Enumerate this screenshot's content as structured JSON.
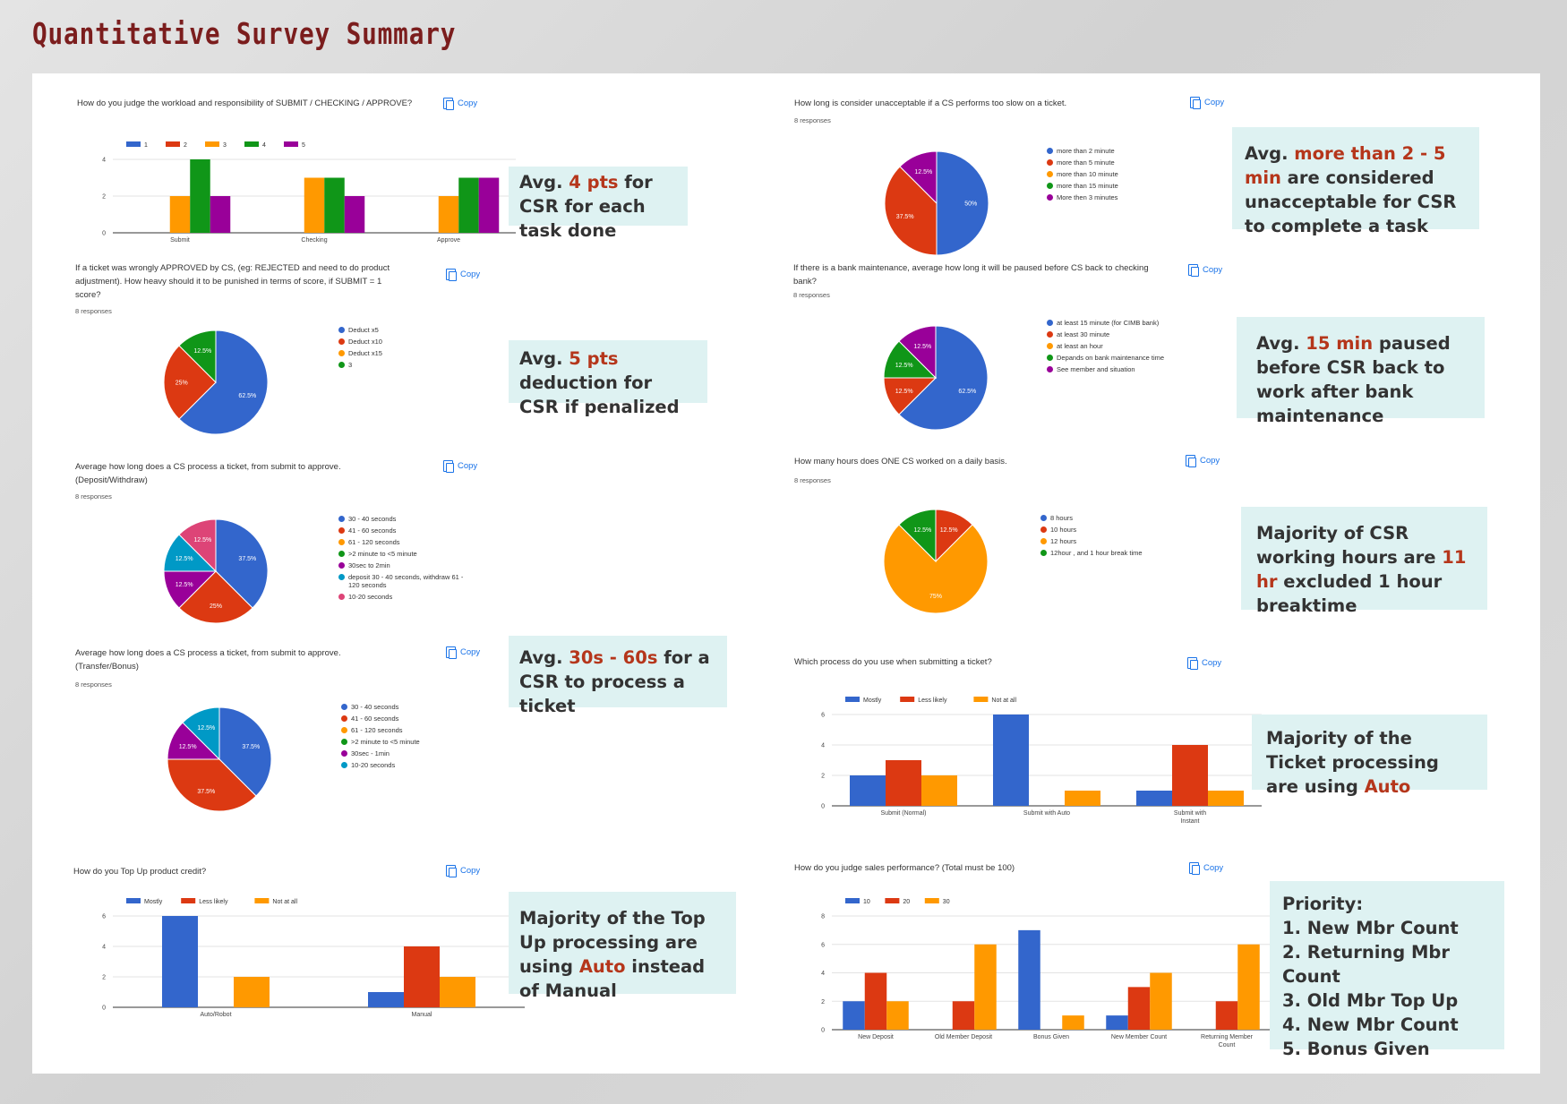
{
  "page": {
    "title": "Quantitative Survey Summary"
  },
  "copy_label": "Copy",
  "responses_label": "8 responses",
  "colors": {
    "blue": "#3366cc",
    "red": "#dc3912",
    "orange": "#ff9900",
    "green": "#109618",
    "purple": "#990099",
    "teal": "#0099c6",
    "pink": "#dd4477"
  },
  "callouts": {
    "workload": {
      "a": "Avg. ",
      "b": "4 pts",
      "c": " for CSR for each task done"
    },
    "penalty": {
      "a": "Avg. ",
      "b": "5 pts",
      "c": " deduction for CSR if penalized"
    },
    "process_time": {
      "a": "Avg. ",
      "b": "30s - 60s",
      "c": " for a CSR to process a ticket"
    },
    "topup": {
      "a": "Majority of the Top Up processing are using ",
      "b": "Auto",
      "c": " instead of Manual"
    },
    "unacceptable": {
      "a": "Avg. ",
      "b": "more than 2 - 5 min",
      "c": " are considered  unacceptable for CSR to complete a task"
    },
    "maintenance": {
      "a": "Avg. ",
      "b": "15 min",
      "c": " paused before CSR back to work after bank maintenance"
    },
    "hours": {
      "a": "Majority of CSR working hours are ",
      "b": "11 hr",
      "c": " excluded 1 hour breaktime"
    },
    "ticket_process": {
      "a": "Majority of the Ticket processing are using ",
      "b": "Auto",
      "c": ""
    },
    "priority": {
      "heading": "Priority:",
      "items": [
        "1. New Mbr Count",
        "2. Returning Mbr Count",
        "3. Old Mbr Top Up",
        "4. New Mbr Count",
        "5. Bonus Given"
      ]
    }
  },
  "chart_data": [
    {
      "id": "q1",
      "type": "bar",
      "title": "How do you judge the workload and responsibility of SUBMIT / CHECKING / APPROVE?",
      "categories": [
        "Submit",
        "Checking",
        "Approve"
      ],
      "series": [
        {
          "name": "1",
          "color": "#3366cc",
          "values": [
            0,
            0,
            0
          ]
        },
        {
          "name": "2",
          "color": "#dc3912",
          "values": [
            0,
            0,
            0
          ]
        },
        {
          "name": "3",
          "color": "#ff9900",
          "values": [
            2,
            3,
            2
          ]
        },
        {
          "name": "4",
          "color": "#109618",
          "values": [
            4,
            3,
            3
          ]
        },
        {
          "name": "5",
          "color": "#990099",
          "values": [
            2,
            2,
            3
          ]
        }
      ],
      "ylim": [
        0,
        4
      ],
      "yticks": [
        0,
        2,
        4
      ],
      "grid": true,
      "legend": "top"
    },
    {
      "id": "q2",
      "type": "pie",
      "title": "If a ticket was wrongly APPROVED by CS, (eg: REJECTED and need to do product adjustment). How heavy should it to be punished in terms of score, if SUBMIT = 1 score?",
      "responses": "8 responses",
      "slices": [
        {
          "name": "Deduct x5",
          "value": 62.5,
          "label": "62.5%",
          "color": "#3366cc"
        },
        {
          "name": "Deduct x10",
          "value": 25,
          "label": "25%",
          "color": "#dc3912"
        },
        {
          "name": "Deduct x15",
          "value": 0,
          "label": "",
          "color": "#ff9900"
        },
        {
          "name": "3",
          "value": 12.5,
          "label": "12.5%",
          "color": "#109618"
        }
      ],
      "legend": "right"
    },
    {
      "id": "q3",
      "type": "pie",
      "title": "Average how long does a CS process a ticket, from submit to approve. (Deposit/Withdraw)",
      "responses": "8 responses",
      "slices": [
        {
          "name": "30 - 40 seconds",
          "value": 37.5,
          "label": "37.5%",
          "color": "#3366cc"
        },
        {
          "name": "41 - 60 seconds",
          "value": 25,
          "label": "25%",
          "color": "#dc3912"
        },
        {
          "name": "61 - 120 seconds",
          "value": 0,
          "label": "",
          "color": "#ff9900"
        },
        {
          "name": ">2 minute to <5 minute",
          "value": 0,
          "label": "",
          "color": "#109618"
        },
        {
          "name": "30sec to 2min",
          "value": 12.5,
          "label": "12.5%",
          "color": "#990099"
        },
        {
          "name": "deposit 30 - 40 seconds, withdraw 61 - 120 seconds",
          "value": 12.5,
          "label": "12.5%",
          "color": "#0099c6"
        },
        {
          "name": "10-20 seconds",
          "value": 12.5,
          "label": "12.5%",
          "color": "#dd4477"
        }
      ],
      "legend": "right"
    },
    {
      "id": "q4",
      "type": "pie",
      "title": "Average how long does a CS process a ticket, from submit to approve. (Transfer/Bonus)",
      "responses": "8 responses",
      "slices": [
        {
          "name": "30 - 40 seconds",
          "value": 37.5,
          "label": "37.5%",
          "color": "#3366cc"
        },
        {
          "name": "41 - 60 seconds",
          "value": 37.5,
          "label": "37.5%",
          "color": "#dc3912"
        },
        {
          "name": "61 - 120 seconds",
          "value": 0,
          "label": "",
          "color": "#ff9900"
        },
        {
          "name": ">2 minute to <5 minute",
          "value": 0,
          "label": "",
          "color": "#109618"
        },
        {
          "name": "30sec - 1min",
          "value": 12.5,
          "label": "12.5%",
          "color": "#990099"
        },
        {
          "name": "10-20 seconds",
          "value": 12.5,
          "label": "12.5%",
          "color": "#0099c6"
        }
      ],
      "legend": "right"
    },
    {
      "id": "q5",
      "type": "bar",
      "title": "How do you Top Up product credit?",
      "categories": [
        "Auto/Robot",
        "Manual"
      ],
      "series": [
        {
          "name": "Mostly",
          "color": "#3366cc",
          "values": [
            6,
            1
          ]
        },
        {
          "name": "Less likely",
          "color": "#dc3912",
          "values": [
            0,
            4
          ]
        },
        {
          "name": "Not at all",
          "color": "#ff9900",
          "values": [
            2,
            2
          ]
        }
      ],
      "ylim": [
        0,
        6
      ],
      "yticks": [
        0,
        2,
        4,
        6
      ],
      "grid": true,
      "legend": "top"
    },
    {
      "id": "q6",
      "type": "pie",
      "title": "How long is consider unacceptable if a CS performs too slow on a ticket.",
      "responses": "8 responses",
      "slices": [
        {
          "name": "more than 2 minute",
          "value": 50,
          "label": "50%",
          "color": "#3366cc"
        },
        {
          "name": "more than 5 minute",
          "value": 37.5,
          "label": "37.5%",
          "color": "#dc3912"
        },
        {
          "name": "more than 10 minute",
          "value": 0,
          "label": "",
          "color": "#ff9900"
        },
        {
          "name": "more than 15 minute",
          "value": 0,
          "label": "",
          "color": "#109618"
        },
        {
          "name": "More then 3 minutes",
          "value": 12.5,
          "label": "12.5%",
          "color": "#990099"
        }
      ],
      "legend": "right"
    },
    {
      "id": "q7",
      "type": "pie",
      "title": "If there is a bank maintenance, average how long it will be paused before CS back to checking bank?",
      "responses": "8 responses",
      "slices": [
        {
          "name": "at least 15 minute (for CIMB bank)",
          "value": 62.5,
          "label": "62.5%",
          "color": "#3366cc"
        },
        {
          "name": "at least 30 minute",
          "value": 12.5,
          "label": "12.5%",
          "color": "#dc3912"
        },
        {
          "name": "at least an hour",
          "value": 0,
          "label": "",
          "color": "#ff9900"
        },
        {
          "name": "Depands on bank maintenance time",
          "value": 12.5,
          "label": "12.5%",
          "color": "#109618"
        },
        {
          "name": "See member and situation",
          "value": 12.5,
          "label": "12.5%",
          "color": "#990099"
        }
      ],
      "legend": "right"
    },
    {
      "id": "q8",
      "type": "pie",
      "title": "How many hours does ONE CS worked on a daily basis.",
      "responses": "8 responses",
      "slices": [
        {
          "name": "8 hours",
          "value": 0,
          "label": "",
          "color": "#3366cc"
        },
        {
          "name": "10 hours",
          "value": 12.5,
          "label": "12.5%",
          "color": "#dc3912"
        },
        {
          "name": "12 hours",
          "value": 75,
          "label": "75%",
          "color": "#ff9900"
        },
        {
          "name": "12hour , and 1 hour break time",
          "value": 12.5,
          "label": "12.5%",
          "color": "#109618"
        }
      ],
      "legend": "right"
    },
    {
      "id": "q9",
      "type": "bar",
      "title": "Which process do you use when submitting a ticket?",
      "categories": [
        "Submit (Normal)",
        "Submit with Auto",
        "Submit with Instant"
      ],
      "series": [
        {
          "name": "Mostly",
          "color": "#3366cc",
          "values": [
            2,
            6,
            1
          ]
        },
        {
          "name": "Less likely",
          "color": "#dc3912",
          "values": [
            3,
            0,
            4
          ]
        },
        {
          "name": "Not at all",
          "color": "#ff9900",
          "values": [
            2,
            1,
            1
          ]
        }
      ],
      "ylim": [
        0,
        6
      ],
      "yticks": [
        0,
        2,
        4,
        6
      ],
      "grid": true,
      "legend": "top"
    },
    {
      "id": "q10",
      "type": "bar",
      "title": "How do you judge sales performance? (Total must be 100)",
      "categories": [
        "New Deposit",
        "Old Member Deposit",
        "Bonus Given",
        "New Member Count",
        "Returning Member Count"
      ],
      "series": [
        {
          "name": "10",
          "color": "#3366cc",
          "values": [
            2,
            0,
            7,
            1,
            0
          ]
        },
        {
          "name": "20",
          "color": "#dc3912",
          "values": [
            4,
            2,
            0,
            3,
            2
          ]
        },
        {
          "name": "30",
          "color": "#ff9900",
          "values": [
            2,
            6,
            1,
            4,
            6
          ]
        }
      ],
      "ylim": [
        0,
        8
      ],
      "yticks": [
        0,
        2,
        4,
        6,
        8
      ],
      "grid": true,
      "legend": "top"
    }
  ]
}
